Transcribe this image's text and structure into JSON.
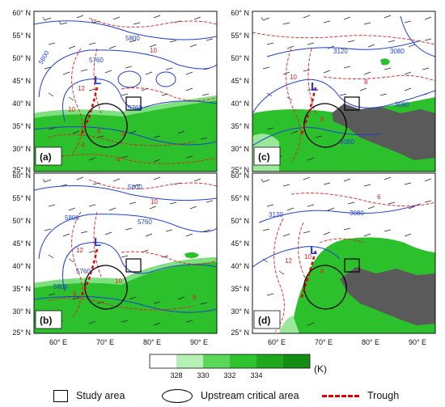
{
  "panels": [
    {
      "id": "a",
      "label": "(a)",
      "trough_label": "L",
      "contour_labels": [
        "5800",
        "5760",
        "5760",
        "5800",
        "12",
        "10",
        "8",
        "8",
        "10",
        "-4",
        "-4"
      ],
      "y_ticks": [
        "60° N",
        "55° N",
        "50° N",
        "45° N",
        "40° N",
        "35° N",
        "30° N",
        "25° N"
      ]
    },
    {
      "id": "c",
      "label": "(c)",
      "trough_label": "L",
      "contour_labels": [
        "3120",
        "3080",
        "3080",
        "3080",
        "10",
        "8",
        "8"
      ],
      "y_ticks": [
        "60° N",
        "55° N",
        "50° N",
        "45° N",
        "40° N",
        "35° N",
        "30° N",
        "25° N"
      ]
    },
    {
      "id": "b",
      "label": "(b)",
      "trough_label": "L",
      "contour_labels": [
        "5800",
        "5800",
        "5760",
        "5760",
        "5800",
        "12",
        "10",
        "8",
        "8",
        "10"
      ],
      "y_ticks": [
        "60° N",
        "55° N",
        "50° N",
        "45° N",
        "40° N",
        "35° N",
        "30° N",
        "25° N"
      ]
    },
    {
      "id": "d",
      "label": "(d)",
      "trough_label": "L",
      "contour_labels": [
        "3120",
        "3080",
        "12",
        "10",
        "8",
        "6"
      ],
      "y_ticks": [
        "60° N",
        "55° N",
        "50° N",
        "45° N",
        "40° N",
        "35° N",
        "30° N",
        "25° N"
      ]
    }
  ],
  "x_ticks_left": [
    "60° E",
    "70° E",
    "80° E",
    "90° E"
  ],
  "x_ticks_right": [
    "60° E",
    "70° E",
    "80° E",
    "90° E"
  ],
  "colorbar": {
    "ticks": [
      "328",
      "330",
      "332",
      "334"
    ],
    "unit": "(K)",
    "colors": [
      "#ffffff",
      "#b5f0b5",
      "#5ad85a",
      "#2fc42f",
      "#1ea81e",
      "#138e13"
    ]
  },
  "legend": {
    "study_area": "Study area",
    "upstream_area": "Upstream critical area",
    "trough": "Trough"
  },
  "colors": {
    "green_shade": "#2cc02c",
    "topography": "#5a5a5a",
    "geopotential_contour": "#1f3fd6",
    "temperature_contour": "#e02020",
    "trough_line": "#e00000",
    "trough_label": "#1f3fd6"
  }
}
